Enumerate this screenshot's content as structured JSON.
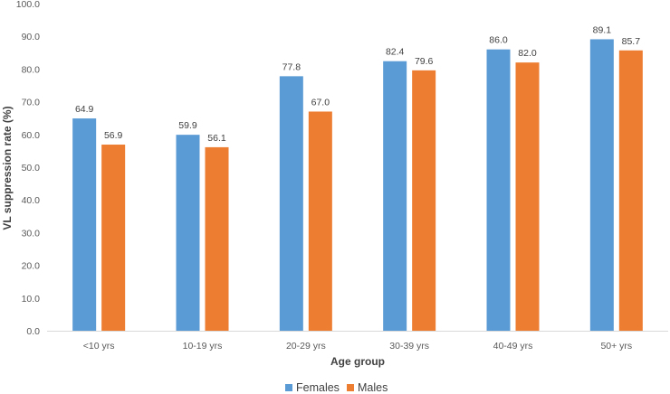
{
  "chart_data": {
    "type": "bar",
    "title": "",
    "xlabel": "Age group",
    "ylabel": "VL suppression rate (%)",
    "ylim": [
      0,
      100
    ],
    "ytick_step": 10,
    "ytick_labels": [
      "0.0",
      "10.0",
      "20.0",
      "30.0",
      "40.0",
      "50.0",
      "60.0",
      "70.0",
      "80.0",
      "90.0",
      "100.0"
    ],
    "grid": false,
    "legend_position": "bottom",
    "categories": [
      "<10 yrs",
      "10-19 yrs",
      "20-29 yrs",
      "30-39 yrs",
      "40-49 yrs",
      "50+ yrs"
    ],
    "series": [
      {
        "name": "Females",
        "color": "#5b9bd5",
        "values": [
          64.9,
          59.9,
          77.8,
          82.4,
          86.0,
          89.1
        ],
        "labels": [
          "64.9",
          "59.9",
          "77.8",
          "82.4",
          "86.0",
          "89.1"
        ]
      },
      {
        "name": "Males",
        "color": "#ed7d31",
        "values": [
          56.9,
          56.1,
          67.0,
          79.6,
          82.0,
          85.7
        ],
        "labels": [
          "56.9",
          "56.1",
          "67.0",
          "79.6",
          "82.0",
          "85.7"
        ]
      }
    ]
  }
}
